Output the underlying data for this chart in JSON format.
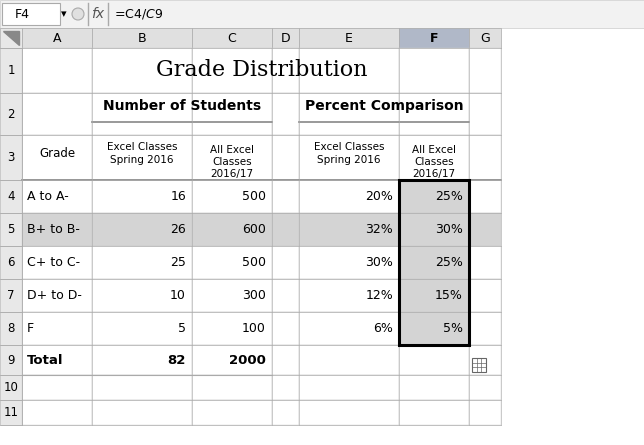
{
  "title": "Grade Distribution",
  "formula_bar_text": "=C4/$C$9",
  "cell_ref": "F4",
  "col_headers": [
    "A",
    "B",
    "C",
    "D",
    "E",
    "F",
    "G"
  ],
  "section_header_numbers": "Number of Students",
  "section_header_percent": "Percent Comparison",
  "grades": [
    "A to A-",
    "B+ to B-",
    "C+ to C-",
    "D+ to D-",
    "F"
  ],
  "num_spring2016": [
    16,
    26,
    25,
    10,
    5
  ],
  "num_all_excel": [
    500,
    600,
    500,
    300,
    100
  ],
  "pct_spring2016": [
    "20%",
    "32%",
    "30%",
    "12%",
    "6%"
  ],
  "pct_all_excel": [
    "25%",
    "30%",
    "25%",
    "15%",
    "5%"
  ],
  "total_label": "Total",
  "total_spring2016": 82,
  "total_all_excel": 2000,
  "bg_color": "#ffffff",
  "cell_gray": "#d4d4d4",
  "col_header_normal_bg": "#e0e0e0",
  "col_F_header_bg": "#b0b8c8",
  "col_F_cell_bg": "#d4d4d4",
  "row5_bg": "#d4d4d4",
  "grid_color": "#b0b0b0",
  "text_color": "#000000",
  "title_fontsize": 16,
  "header_fontsize": 10,
  "body_fontsize": 9,
  "formula_bar_fontsize": 9
}
